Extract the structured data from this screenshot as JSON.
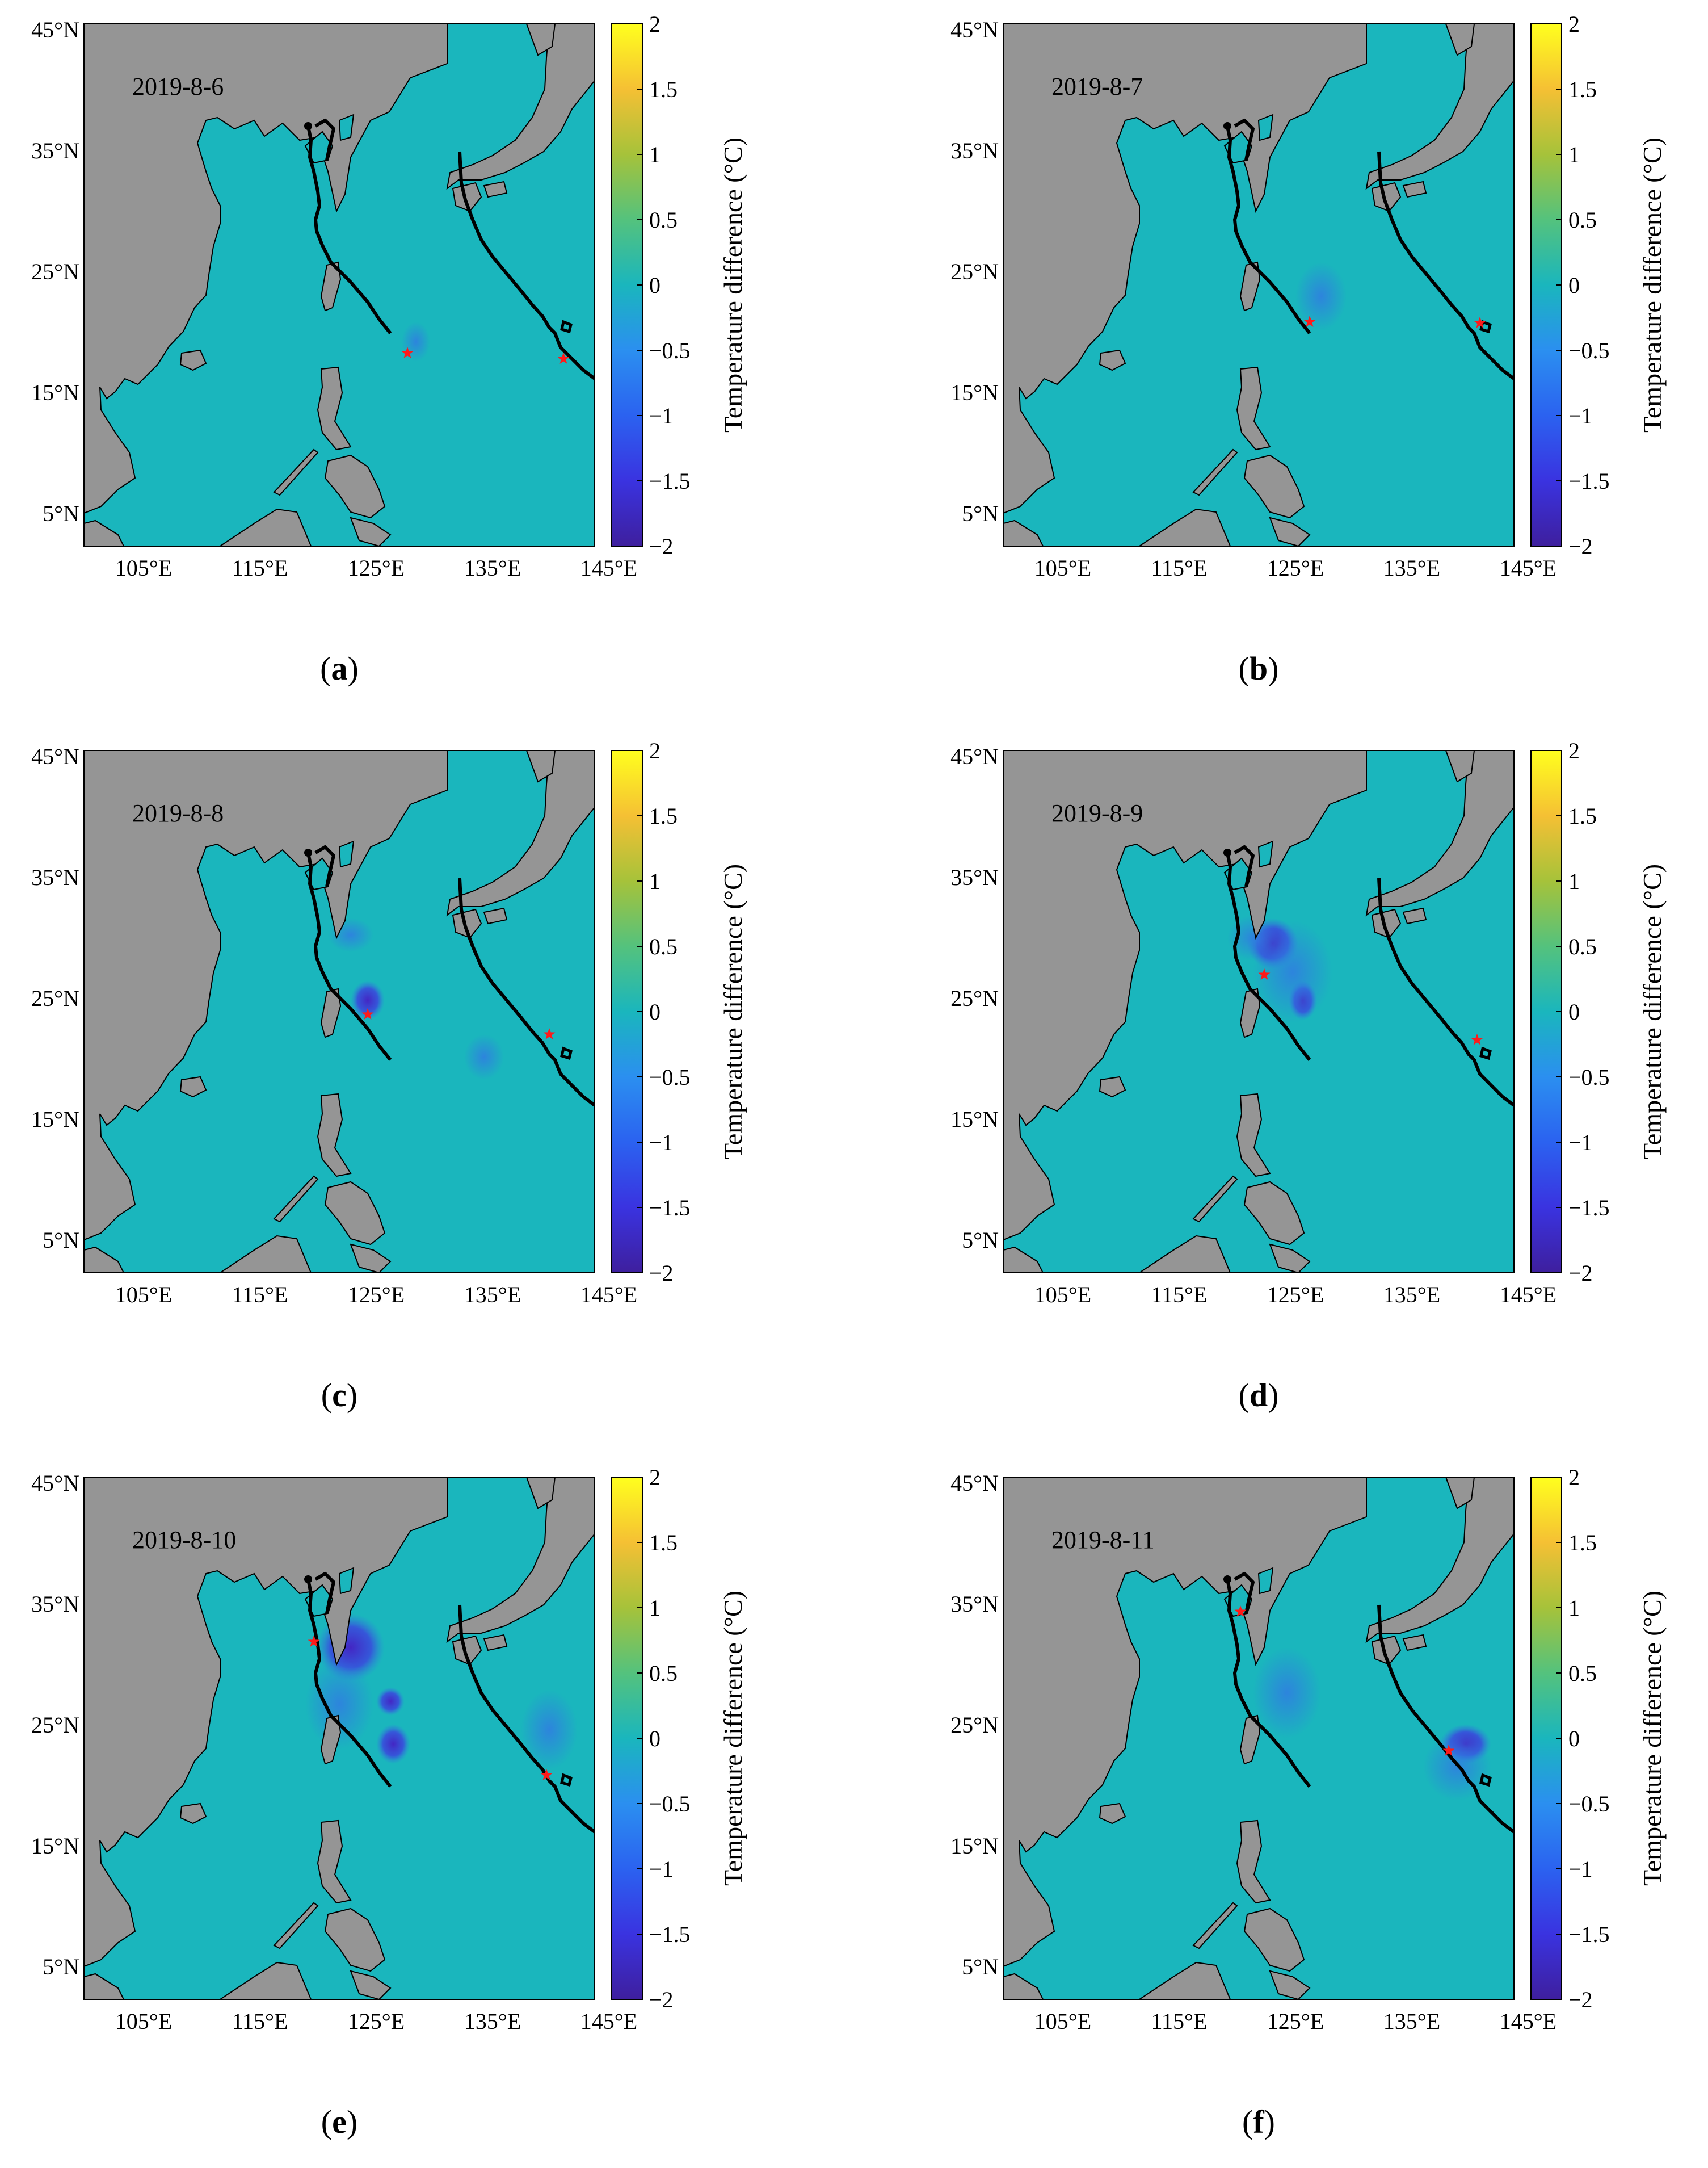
{
  "figure": {
    "colorbar": {
      "label": "Temperature difference (°C)",
      "ticks": [
        "2",
        "1.5",
        "1",
        "0.5",
        "0",
        "−0.5",
        "−1",
        "−1.5",
        "−2"
      ],
      "colors": [
        "#ffff1e",
        "#f5c034",
        "#a6c23a",
        "#54c27d",
        "#1ab6bd",
        "#2b8ff0",
        "#2b62f0",
        "#3a33e0",
        "#3e1f9e"
      ]
    },
    "axes": {
      "lat_ticks": [
        "45°N",
        "35°N",
        "25°N",
        "15°N",
        "5°N"
      ],
      "lon_ticks": [
        "105°E",
        "115°E",
        "125°E",
        "135°E",
        "145°E"
      ]
    },
    "colors": {
      "land": "#959595",
      "ocean": "#1ab6bd",
      "track": "#000000",
      "typhoon_center": "#ff1a1a",
      "cooling_weak": "#2f90dc",
      "cooling_strong": "#4a2ec8"
    },
    "panels": [
      {
        "letter": "(a)",
        "date": "2019-8-6"
      },
      {
        "letter": "(b)",
        "date": "2019-8-7"
      },
      {
        "letter": "(c)",
        "date": "2019-8-8"
      },
      {
        "letter": "(d)",
        "date": "2019-8-9"
      },
      {
        "letter": "(e)",
        "date": "2019-8-10"
      },
      {
        "letter": "(f)",
        "date": "2019-8-11"
      }
    ]
  }
}
